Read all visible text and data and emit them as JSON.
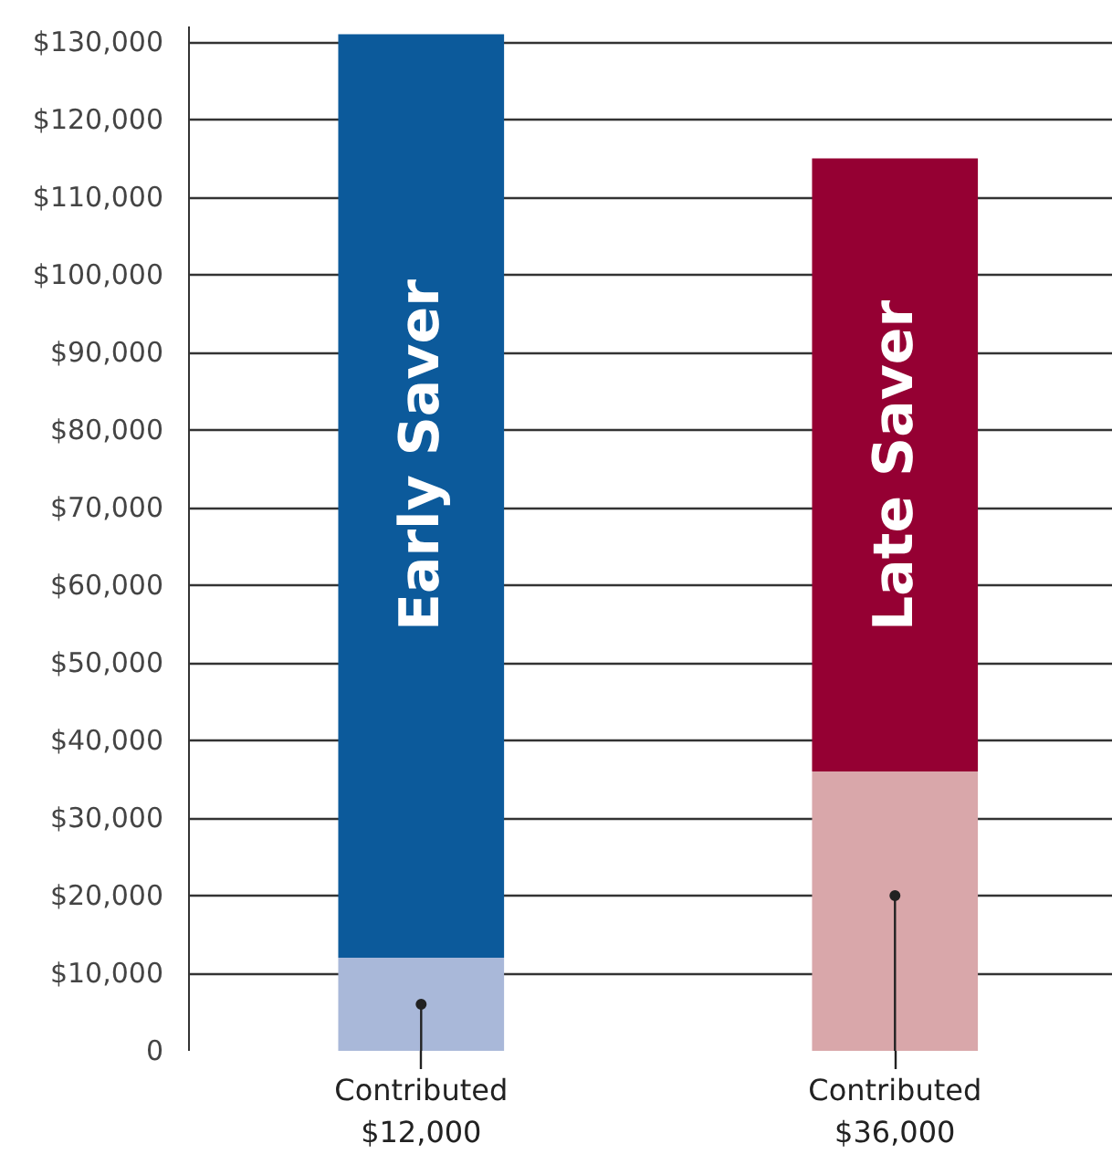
{
  "chart_data": {
    "type": "bar",
    "stacked": true,
    "categories": [
      "Early Saver",
      "Late Saver"
    ],
    "series": [
      {
        "colors": [
          "#a9b8d9",
          "#d9a7aa"
        ],
        "values": [
          12000,
          36000
        ]
      },
      {
        "colors": [
          "#0c5a9b",
          "#950033"
        ],
        "values": [
          119000,
          79000
        ]
      }
    ],
    "ylim": [
      0,
      132000
    ],
    "yticks": [
      0,
      {
        "value": 10000,
        "label": "$10,000"
      },
      {
        "value": 20000,
        "label": "$20,000"
      },
      {
        "value": 30000,
        "label": "$30,000"
      },
      {
        "value": 40000,
        "label": "$40,000"
      },
      {
        "value": 50000,
        "label": "$50,000"
      },
      {
        "value": 60000,
        "label": "$60,000"
      },
      {
        "value": 70000,
        "label": "$70,000"
      },
      {
        "value": 80000,
        "label": "$80,000"
      },
      {
        "value": 90000,
        "label": "$90,000"
      },
      {
        "value": 100000,
        "label": "$100,000"
      },
      {
        "value": 110000,
        "label": "$110,000"
      },
      {
        "value": 120000,
        "label": "$120,000"
      },
      {
        "value": 130000,
        "label": "$130,000"
      }
    ],
    "grid": "y",
    "tick_labels": "y",
    "annotations": [
      {
        "text": "Contributed\n$12,000",
        "x": "Early Saver",
        "y": 6000
      },
      {
        "text": "Contributed\n$36,000",
        "x": "Late Saver",
        "y": 20000
      }
    ]
  }
}
